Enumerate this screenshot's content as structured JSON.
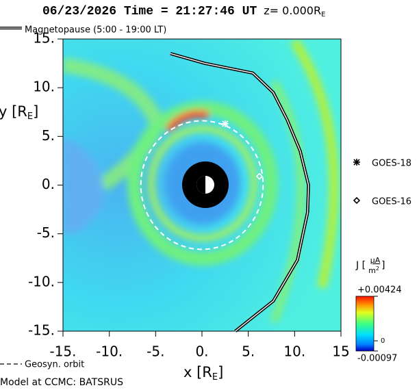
{
  "chart_data": {
    "type": "field",
    "title": [
      "06/23/2026 Time = 21:27:46 UT",
      "z= 0.000R",
      "E"
    ],
    "xlabel": [
      "x [R",
      "E",
      "]"
    ],
    "ylabel": [
      "y [R",
      "E",
      "]"
    ],
    "footer": "Model at CCMC: BATSRUS",
    "xlim": [
      -15,
      15
    ],
    "ylim": [
      -15,
      15
    ],
    "xticks": [
      {
        "value": -15,
        "label": "-15."
      },
      {
        "value": -10,
        "label": "-10."
      },
      {
        "value": -5,
        "label": "-5."
      },
      {
        "value": 0,
        "label": "0."
      },
      {
        "value": 5,
        "label": "5."
      },
      {
        "value": 10,
        "label": "10."
      },
      {
        "value": 15,
        "label": "15"
      }
    ],
    "yticks": [
      {
        "value": 15,
        "label": "15."
      },
      {
        "value": 10,
        "label": "10."
      },
      {
        "value": 5,
        "label": "5."
      },
      {
        "value": 0,
        "label": "0."
      },
      {
        "value": -5,
        "label": "-5."
      },
      {
        "value": -10,
        "label": "-10."
      },
      {
        "value": -15,
        "label": "-15."
      }
    ],
    "magnetopause": {
      "name": "Magnetopause (5:00 - 19:00 LT)",
      "x": [
        -3.4,
        0.3,
        5.5,
        7.7,
        9.2,
        10.6,
        11.5,
        11.4,
        10.3,
        7.7,
        3.6
      ],
      "y": [
        13.5,
        12.5,
        11.5,
        9.5,
        6.7,
        3.5,
        0,
        -2.8,
        -7.7,
        -11.9,
        -15
      ]
    },
    "geosyn_orbit": {
      "name": "Geosyn. orbit",
      "radius": 6.6
    },
    "satellites": [
      {
        "name": "GOES-18",
        "marker": "asterisk",
        "x": 2.5,
        "y": 6.3
      },
      {
        "name": "GOES-16",
        "marker": "diamond",
        "x": 6.2,
        "y": 0.9
      }
    ],
    "colorbar": {
      "label": [
        "J [",
        "μA",
        "m",
        "2",
        "]"
      ],
      "lim": [
        -0.00097,
        0.00424
      ],
      "ticks": [
        {
          "value": 0.00424,
          "label": "+0.00424"
        },
        0,
        {
          "value": -0.00097,
          "label": "-0.00097"
        }
      ]
    }
  }
}
